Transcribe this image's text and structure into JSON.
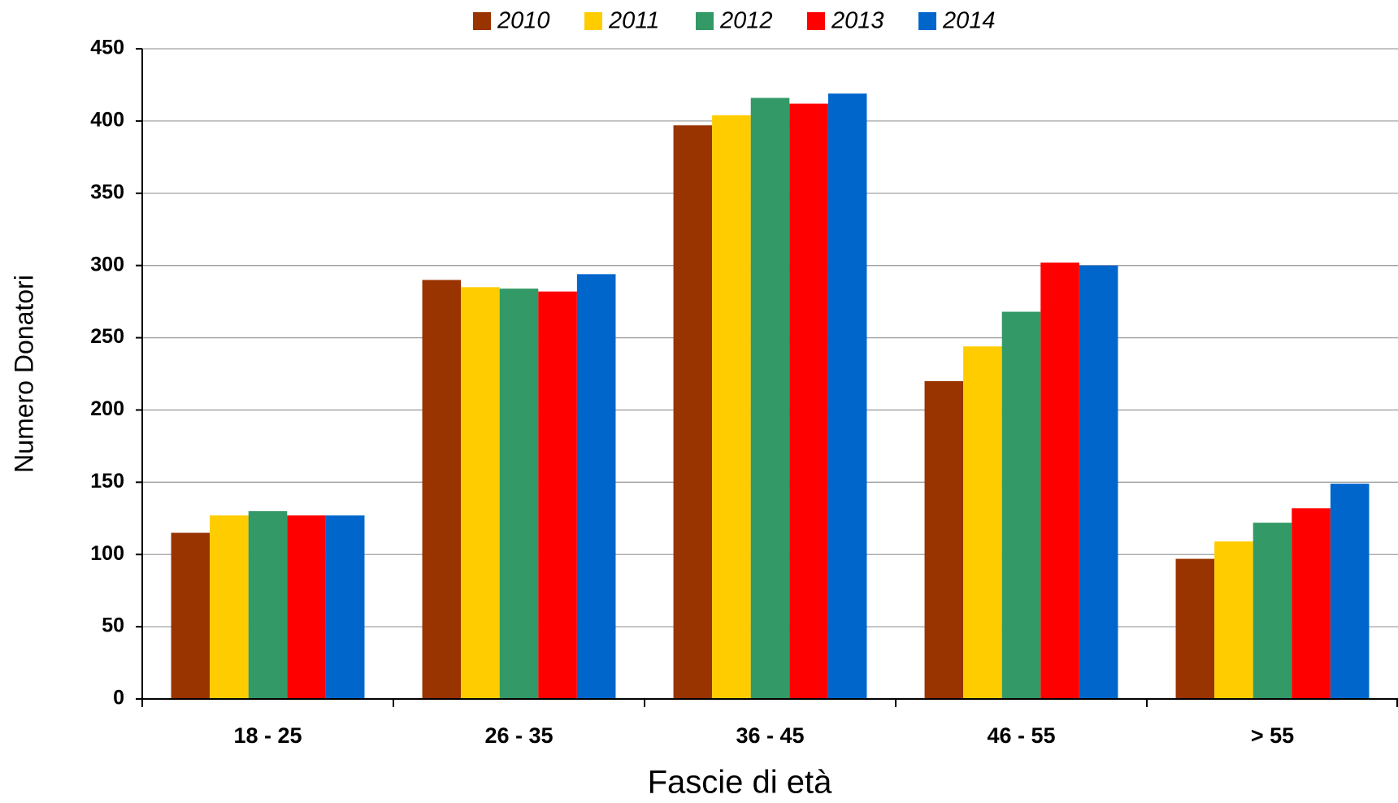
{
  "chart_data": {
    "type": "bar",
    "x_label": "Fascie di età",
    "y_label": "Numero Donatori",
    "categories": [
      "18 - 25",
      "26 - 35",
      "36 - 45",
      "46 - 55",
      "> 55"
    ],
    "series": [
      {
        "name": "2010",
        "color": "#993300",
        "values": [
          115,
          290,
          397,
          220,
          97
        ]
      },
      {
        "name": "2011",
        "color": "#FFCC00",
        "values": [
          127,
          285,
          404,
          244,
          109
        ]
      },
      {
        "name": "2012",
        "color": "#339966",
        "values": [
          130,
          284,
          416,
          268,
          122
        ]
      },
      {
        "name": "2013",
        "color": "#FF0000",
        "values": [
          127,
          282,
          412,
          302,
          132
        ]
      },
      {
        "name": "2014",
        "color": "#0066CC",
        "values": [
          127,
          294,
          419,
          300,
          149
        ]
      }
    ],
    "ylim": [
      0,
      450
    ],
    "yticks": [
      0,
      50,
      100,
      150,
      200,
      250,
      300,
      350,
      400,
      450
    ],
    "grid": true,
    "legend": "top"
  }
}
